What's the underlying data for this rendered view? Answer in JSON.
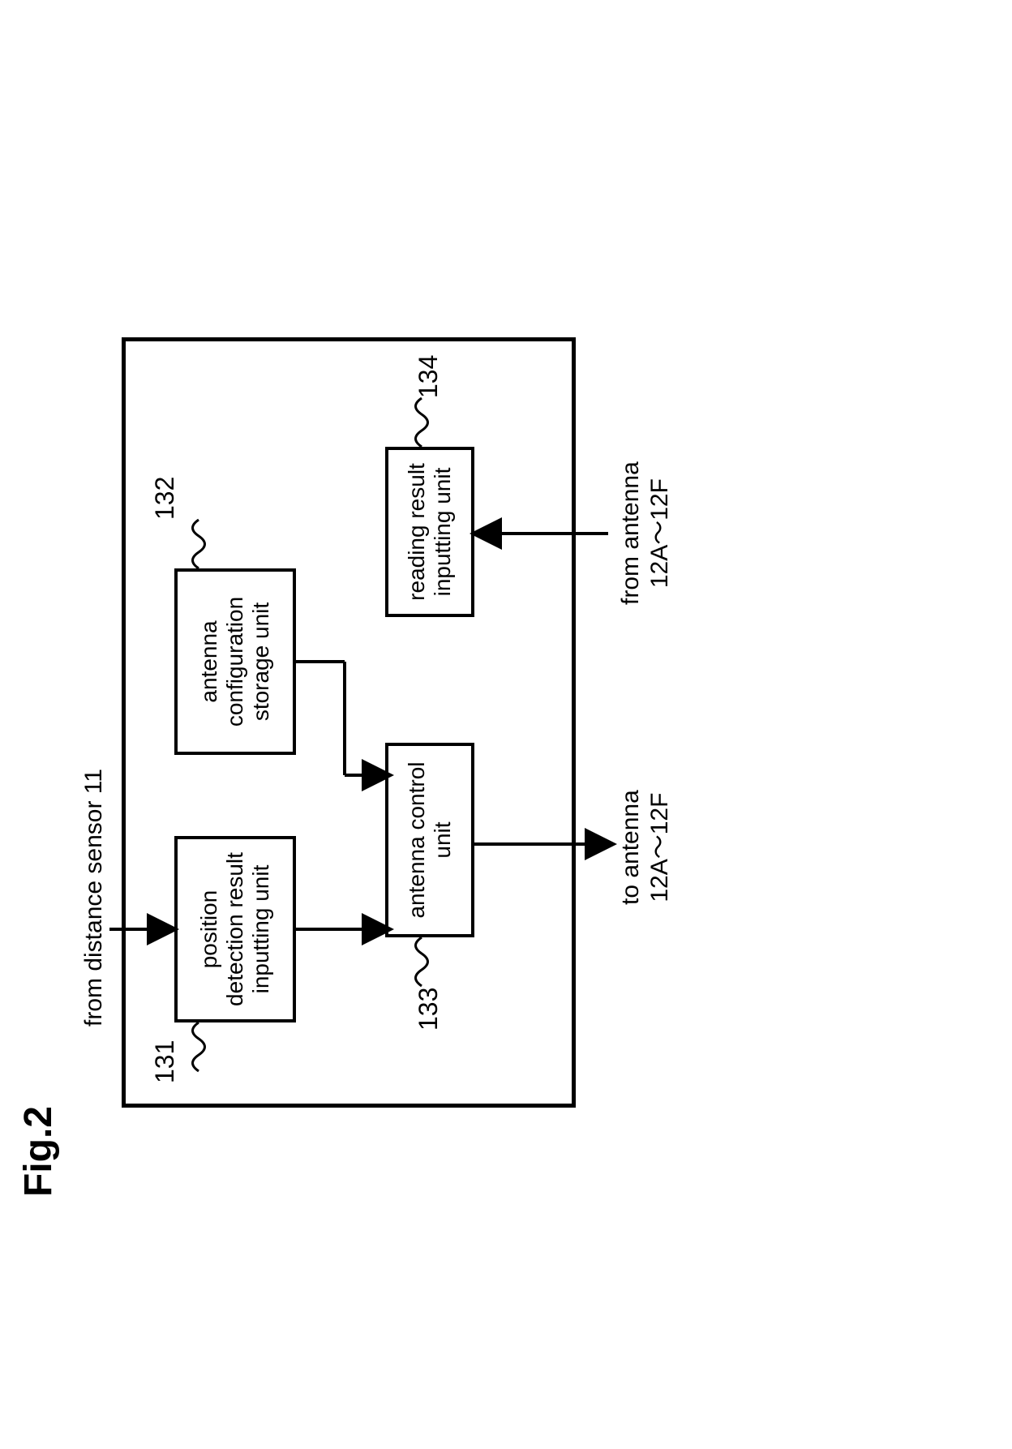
{
  "figure": {
    "label": "Fig.2"
  },
  "boxes": {
    "b131": {
      "text": "position\ndetection result\ninputting unit",
      "ref": "131"
    },
    "b132": {
      "text": "antenna\nconfiguration\nstorage unit",
      "ref": "132"
    },
    "b133": {
      "text": "antenna control\nunit",
      "ref": "133"
    },
    "b134": {
      "text": "reading result\ninputting unit",
      "ref": "134"
    }
  },
  "labels": {
    "top_in": "from distance sensor 11",
    "bottom_left": "to antenna\n12A～12F",
    "bottom_right": "from antenna\n12A～12F"
  },
  "style": {
    "stroke": "#000000",
    "stroke_width": 4,
    "arrow_size": 14
  }
}
